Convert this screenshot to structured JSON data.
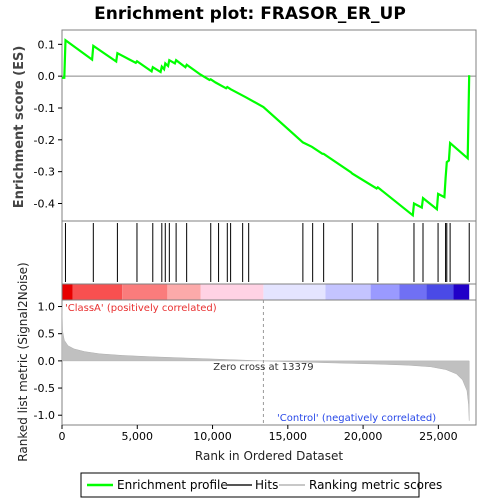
{
  "chart_data": {
    "type": "line",
    "title": "Enrichment plot: FRASOR_ER_UP",
    "xlabel": "Rank in Ordered Dataset",
    "xlim": [
      0,
      27500
    ],
    "x_ticks": [
      0,
      5000,
      10000,
      15000,
      20000,
      25000
    ],
    "x_tick_labels": [
      "0",
      "5,000",
      "10,000",
      "15,000",
      "20,000",
      "25,000"
    ],
    "es_panel": {
      "ylabel": "Enrichment score (ES)",
      "ylim": [
        -0.455,
        0.145
      ],
      "y_ticks": [
        0.1,
        0.0,
        -0.1,
        -0.2,
        -0.3,
        -0.4
      ],
      "y_tick_labels": [
        "0.1",
        "0.0",
        "-0.1",
        "-0.2",
        "-0.3",
        "-0.4"
      ],
      "series": [
        {
          "name": "Enrichment profile",
          "color": "#00ff00",
          "points": [
            [
              0,
              -0.005
            ],
            [
              150,
              -0.005
            ],
            [
              230,
              0.113
            ],
            [
              2000,
              0.052
            ],
            [
              2080,
              0.095
            ],
            [
              3600,
              0.046
            ],
            [
              3680,
              0.072
            ],
            [
              4900,
              0.042
            ],
            [
              4980,
              0.047
            ],
            [
              5950,
              0.015
            ],
            [
              6030,
              0.028
            ],
            [
              6550,
              0.013
            ],
            [
              6630,
              0.03
            ],
            [
              6780,
              0.022
            ],
            [
              6860,
              0.04
            ],
            [
              7050,
              0.032
            ],
            [
              7130,
              0.05
            ],
            [
              7500,
              0.04
            ],
            [
              7580,
              0.05
            ],
            [
              8200,
              0.028
            ],
            [
              8280,
              0.036
            ],
            [
              9200,
              0.005
            ],
            [
              9800,
              -0.012
            ],
            [
              9880,
              -0.01
            ],
            [
              10200,
              -0.02
            ],
            [
              10900,
              -0.038
            ],
            [
              10980,
              -0.034
            ],
            [
              11200,
              -0.041
            ],
            [
              12200,
              -0.066
            ],
            [
              13379,
              -0.097
            ],
            [
              16000,
              -0.208
            ],
            [
              16600,
              -0.222
            ],
            [
              17300,
              -0.244
            ],
            [
              17380,
              -0.244
            ],
            [
              19200,
              -0.302
            ],
            [
              19280,
              -0.306
            ],
            [
              20900,
              -0.353
            ],
            [
              20980,
              -0.349
            ],
            [
              23300,
              -0.437
            ],
            [
              23380,
              -0.4
            ],
            [
              23900,
              -0.413
            ],
            [
              23980,
              -0.383
            ],
            [
              24900,
              -0.418
            ],
            [
              24980,
              -0.37
            ],
            [
              25400,
              -0.38
            ],
            [
              25480,
              -0.32
            ],
            [
              25560,
              -0.27
            ],
            [
              25700,
              -0.265
            ],
            [
              25780,
              -0.21
            ],
            [
              26950,
              -0.258
            ],
            [
              27050,
              0.003
            ]
          ]
        }
      ]
    },
    "hits": {
      "name": "Hits",
      "color": "#000000",
      "x": [
        230,
        2080,
        3680,
        4980,
        6030,
        6630,
        6860,
        7130,
        7580,
        8280,
        9880,
        10400,
        10980,
        11200,
        12000,
        12400,
        16000,
        16650,
        17380,
        19280,
        20980,
        23380,
        23980,
        24980,
        25480,
        25560,
        25780,
        27050
      ]
    },
    "color_bar": {
      "segments": [
        {
          "from": 0,
          "to": 700,
          "color": "#e80000"
        },
        {
          "from": 700,
          "to": 4000,
          "color": "#f85050"
        },
        {
          "from": 4000,
          "to": 7000,
          "color": "#fa7c7c"
        },
        {
          "from": 7000,
          "to": 9200,
          "color": "#fcaaaa"
        },
        {
          "from": 9200,
          "to": 13379,
          "color": "#ffd2e4"
        },
        {
          "from": 13379,
          "to": 17500,
          "color": "#e4e4ff"
        },
        {
          "from": 17500,
          "to": 20500,
          "color": "#c4c4ff"
        },
        {
          "from": 20500,
          "to": 22400,
          "color": "#9a9aff"
        },
        {
          "from": 22400,
          "to": 24200,
          "color": "#7070f4"
        },
        {
          "from": 24200,
          "to": 26000,
          "color": "#4a4ae6"
        },
        {
          "from": 26000,
          "to": 27050,
          "color": "#2000c8"
        }
      ]
    },
    "metric_panel": {
      "ylabel": "Ranked list metric (Signal2Noise)",
      "ylim": [
        -1.18,
        1.12
      ],
      "y_ticks": [
        1.0,
        0.5,
        0.0,
        -0.5,
        -1.0
      ],
      "y_tick_labels": [
        "1.0",
        "0.5",
        "0.0",
        "-0.5",
        "-1.0"
      ],
      "series": [
        {
          "name": "Ranking metric scores",
          "color": "#c0c0c0",
          "points": [
            [
              0,
              1.0
            ],
            [
              40,
              0.55
            ],
            [
              150,
              0.38
            ],
            [
              400,
              0.28
            ],
            [
              800,
              0.22
            ],
            [
              1500,
              0.17
            ],
            [
              2500,
              0.13
            ],
            [
              4000,
              0.1
            ],
            [
              6000,
              0.075
            ],
            [
              8000,
              0.055
            ],
            [
              10000,
              0.035
            ],
            [
              12000,
              0.015
            ],
            [
              13379,
              0.0
            ],
            [
              15000,
              -0.015
            ],
            [
              17000,
              -0.03
            ],
            [
              19000,
              -0.045
            ],
            [
              21000,
              -0.06
            ],
            [
              23000,
              -0.08
            ],
            [
              24500,
              -0.11
            ],
            [
              25500,
              -0.16
            ],
            [
              26200,
              -0.24
            ],
            [
              26600,
              -0.35
            ],
            [
              26900,
              -0.55
            ],
            [
              27000,
              -0.8
            ],
            [
              27050,
              -1.1
            ]
          ]
        }
      ],
      "zero_cross_label": "Zero cross at 13379",
      "zero_cross_x": 13379,
      "pos_label": "'ClassA' (positively correlated)",
      "neg_label": "'Control' (negatively correlated)",
      "pos_color": "#e83030",
      "neg_color": "#2848e8"
    },
    "legend": {
      "placement": "bottom",
      "items": [
        {
          "label": "Enrichment profile",
          "color": "#00ff00",
          "kind": "line"
        },
        {
          "label": "Hits",
          "color": "#555555",
          "kind": "line"
        },
        {
          "label": "Ranking metric scores",
          "color": "#c8c8c8",
          "kind": "line"
        }
      ]
    }
  }
}
